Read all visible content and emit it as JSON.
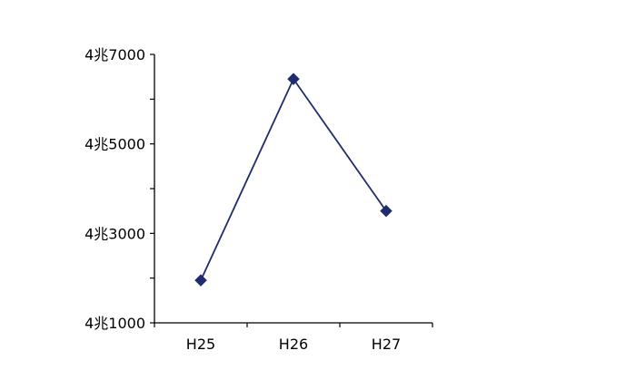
{
  "chart_data": {
    "type": "line",
    "categories": [
      "H25",
      "H26",
      "H27"
    ],
    "series": [
      {
        "values": [
          41950,
          46450,
          43500
        ],
        "color": "#1f2d6e",
        "marker": "diamond"
      }
    ],
    "ylim": [
      41000,
      47000
    ],
    "y_major_ticks": [
      41000,
      43000,
      45000,
      47000
    ],
    "y_minor_ticks": [
      42000,
      44000,
      46000
    ],
    "y_tick_labels": [
      "4兆1000",
      "4兆3000",
      "4兆5000",
      "4兆7000"
    ],
    "grid": false,
    "axis_color": "#000000"
  }
}
